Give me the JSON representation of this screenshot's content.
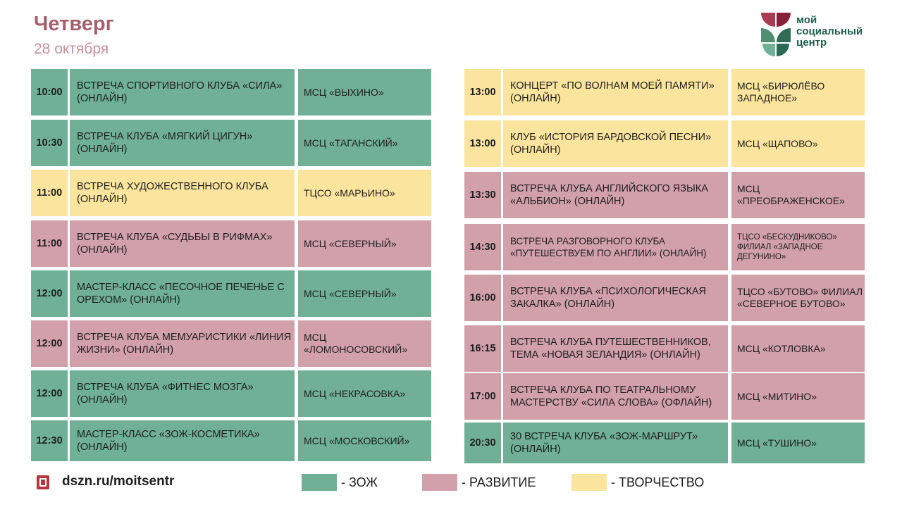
{
  "header": {
    "day": "Четверг",
    "date": "28 октября"
  },
  "logo": {
    "line1": "мой",
    "line2": "социальный",
    "line3": "центр"
  },
  "colors": {
    "zoj": "#6fb096",
    "razvitie": "#d2a0aa",
    "tvorchestvo": "#fbe49d"
  },
  "left_column": [
    {
      "time": "10:00",
      "event": "ВСТРЕЧА СПОРТИВНОГО КЛУБА «СИЛА» (ОНЛАЙН)",
      "place": "МСЦ «ВЫХИНО»",
      "category": "zoj"
    },
    {
      "time": "10:30",
      "event": "ВСТРЕЧА КЛУБА «МЯГКИЙ ЦИГУН» (ОНЛАЙН)",
      "place": "МСЦ «ТАГАНСКИЙ»",
      "category": "zoj"
    },
    {
      "time": "11:00",
      "event": "ВСТРЕЧА ХУДОЖЕСТВЕННОГО КЛУБА (ОНЛАЙН)",
      "place": "ТЦСО «МАРЬИНО»",
      "category": "tvor"
    },
    {
      "time": "11:00",
      "event": "ВСТРЕЧА КЛУБА «СУДЬБЫ В РИФМАХ» (ОНЛАЙН)",
      "place": "МСЦ «СЕВЕРНЫЙ»",
      "category": "razv"
    },
    {
      "time": "12:00",
      "event": "МАСТЕР-КЛАСС «ПЕСОЧНОЕ ПЕЧЕНЬЕ С ОРЕХОМ» (ОНЛАЙН)",
      "place": "МСЦ «СЕВЕРНЫЙ»",
      "category": "zoj"
    },
    {
      "time": "12:00",
      "event": "ВСТРЕЧА КЛУБА МЕМУАРИСТИКИ «ЛИНИЯ ЖИЗНИ» (ОНЛАЙН)",
      "place": "МСЦ «ЛОМОНОСОВСКИЙ»",
      "category": "razv"
    },
    {
      "time": "12:00",
      "event": "ВСТРЕЧА КЛУБА «ФИТНЕС МОЗГА» (ОНЛАЙН)",
      "place": "МСЦ «НЕКРАСОВКА»",
      "category": "zoj"
    },
    {
      "time": "12:30",
      "event": "МАСТЕР-КЛАСС «ЗОЖ-КОСМЕТИКА» (ОНЛАЙН)",
      "place": "МСЦ «МОСКОВСКИЙ»",
      "category": "zoj"
    }
  ],
  "right_column": [
    {
      "time": "13:00",
      "event": "КОНЦЕРТ «ПО ВОЛНАМ МОЕЙ ПАМЯТИ» (ОНЛАЙН)",
      "place": "МСЦ «БИРЮЛЁВО ЗАПАДНОЕ»",
      "category": "tvor"
    },
    {
      "time": "13:00",
      "event": "КЛУБ «ИСТОРИЯ БАРДОВСКОЙ ПЕСНИ» (ОНЛАЙН)",
      "place": "МСЦ «ЩАПОВО»",
      "category": "tvor"
    },
    {
      "time": "13:30",
      "event": "ВСТРЕЧА КЛУБА АНГЛИЙСКОГО ЯЗЫКА «АЛЬБИОН» (ОНЛАЙН)",
      "place": "МСЦ «ПРЕОБРАЖЕНСКОЕ»",
      "category": "razv"
    },
    {
      "time": "14:30",
      "event": "ВСТРЕЧА РАЗГОВОРНОГО КЛУБА «ПУТЕШЕСТВУЕМ ПО АНГЛИИ» (ОНЛАЙН)",
      "place": "ТЦСО «БЕСКУДНИКОВО» ФИЛИАЛ «ЗАПАДНОЕ ДЕГУНИНО»",
      "category": "razv"
    },
    {
      "time": "16:00",
      "event": "ВСТРЕЧА КЛУБА «ПСИХОЛОГИЧЕСКАЯ ЗАКАЛКА» (ОНЛАЙН)",
      "place": "ТЦСО «БУТОВО» ФИЛИАЛ «СЕВЕРНОЕ БУТОВО»",
      "category": "razv"
    },
    {
      "time": "16:15",
      "event": "ВСТРЕЧА КЛУБА ПУТЕШЕСТВЕННИКОВ, ТЕМА «НОВАЯ ЗЕЛАНДИЯ» (ОНЛАЙН)",
      "place": "МСЦ «КОТЛОВКА»",
      "category": "razv"
    },
    {
      "time": "17:00",
      "event": "ВСТРЕЧА КЛУБА ПО ТЕАТРАЛЬНОМУ МАСТЕРСТВУ «СИЛА СЛОВА» (ОФЛАЙН)",
      "place": "МСЦ «МИТИНО»",
      "category": "razv"
    },
    {
      "time": "20:30",
      "event": "30 ВСТРЕЧА КЛУБА «ЗОЖ-МАРШРУТ» (ОНЛАЙН)",
      "place": "МСЦ «ТУШИНО»",
      "category": "zoj"
    }
  ],
  "footer": {
    "link": "dszn.ru/moitsentr"
  },
  "legend": [
    {
      "label": "- ЗОЖ",
      "category": "zoj"
    },
    {
      "label": "- РАЗВИТИЕ",
      "category": "razv"
    },
    {
      "label": "- ТВОРЧЕСТВО",
      "category": "tvor"
    }
  ]
}
